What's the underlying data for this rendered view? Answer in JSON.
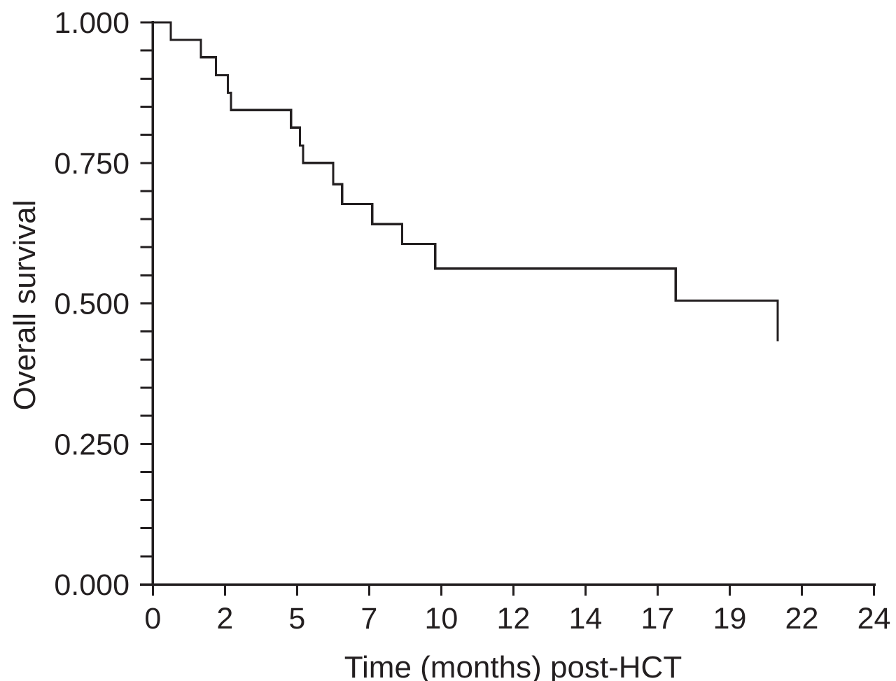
{
  "figure": {
    "background": "#ffffff",
    "line_color": "#231f20",
    "text_color": "#231f20"
  },
  "chart_data": {
    "type": "line",
    "subtype": "kaplan_meier_step",
    "title": "",
    "xlabel": "Time (months) post-HCT",
    "ylabel": "Overall survival",
    "xlim": [
      0,
      24
    ],
    "ylim": [
      0.0,
      1.0
    ],
    "grid": false,
    "legend": "none",
    "x_ticks": {
      "labels": [
        "0",
        "2",
        "5",
        "7",
        "10",
        "12",
        "14",
        "17",
        "19",
        "22",
        "24"
      ],
      "positions_months": [
        0,
        2.4,
        4.8,
        7.2,
        9.6,
        12,
        14.4,
        16.8,
        19.2,
        21.6,
        24
      ],
      "note": "11 equally spaced ticks across 0-24 months; labels are rounded month values"
    },
    "y_ticks": {
      "major_labels": [
        "0.000",
        "0.250",
        "0.500",
        "0.750",
        "1.000"
      ],
      "major_values": [
        0.0,
        0.25,
        0.5,
        0.75,
        1.0
      ],
      "minor_interval": 0.05
    },
    "series": [
      {
        "name": "Overall survival",
        "color": "#231f20",
        "step_points": [
          [
            0.0,
            1.0
          ],
          [
            0.6,
            0.969
          ],
          [
            1.6,
            0.938
          ],
          [
            2.1,
            0.906
          ],
          [
            2.5,
            0.875
          ],
          [
            2.6,
            0.844
          ],
          [
            4.6,
            0.813
          ],
          [
            4.9,
            0.781
          ],
          [
            5.0,
            0.75
          ],
          [
            6.0,
            0.712
          ],
          [
            6.3,
            0.677
          ],
          [
            7.3,
            0.641
          ],
          [
            8.3,
            0.606
          ],
          [
            9.4,
            0.562
          ],
          [
            17.4,
            0.505
          ],
          [
            20.8,
            0.433
          ]
        ],
        "ends_with_vertical_drop": true,
        "censor_marks": "none"
      }
    ]
  }
}
